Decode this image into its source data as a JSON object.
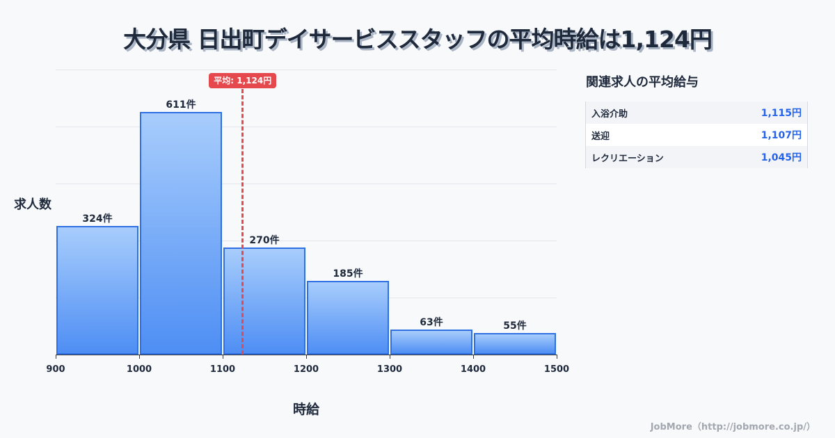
{
  "title": "大分県 日出町デイサービススタッフの平均時給は1,124円",
  "chart_data": {
    "type": "bar",
    "title": "大分県 日出町デイサービススタッフの平均時給は1,124円",
    "xlabel": "時給",
    "ylabel": "求人数",
    "x_ticks": [
      "900",
      "1000",
      "1100",
      "1200",
      "1300",
      "1400",
      "1500"
    ],
    "categories": [
      "900-1000",
      "1000-1100",
      "1100-1200",
      "1200-1300",
      "1300-1400",
      "1400-1500"
    ],
    "values": [
      324,
      611,
      270,
      185,
      63,
      55
    ],
    "value_labels": [
      "324件",
      "611件",
      "270件",
      "185件",
      "63件",
      "55件"
    ],
    "xlim": [
      900,
      1500
    ],
    "grid": true,
    "mean": {
      "value": 1124,
      "label": "平均: 1,124円",
      "color": "#e5484d"
    },
    "bar_color": "#4e8ef4"
  },
  "side_panel": {
    "title": "関連求人の平均給与",
    "items": [
      {
        "name": "入浴介助",
        "value": "1,115円"
      },
      {
        "name": "送迎",
        "value": "1,107円"
      },
      {
        "name": "レクリエーション",
        "value": "1,045円"
      }
    ]
  },
  "footer": "JobMore（http://jobmore.co.jp/）"
}
